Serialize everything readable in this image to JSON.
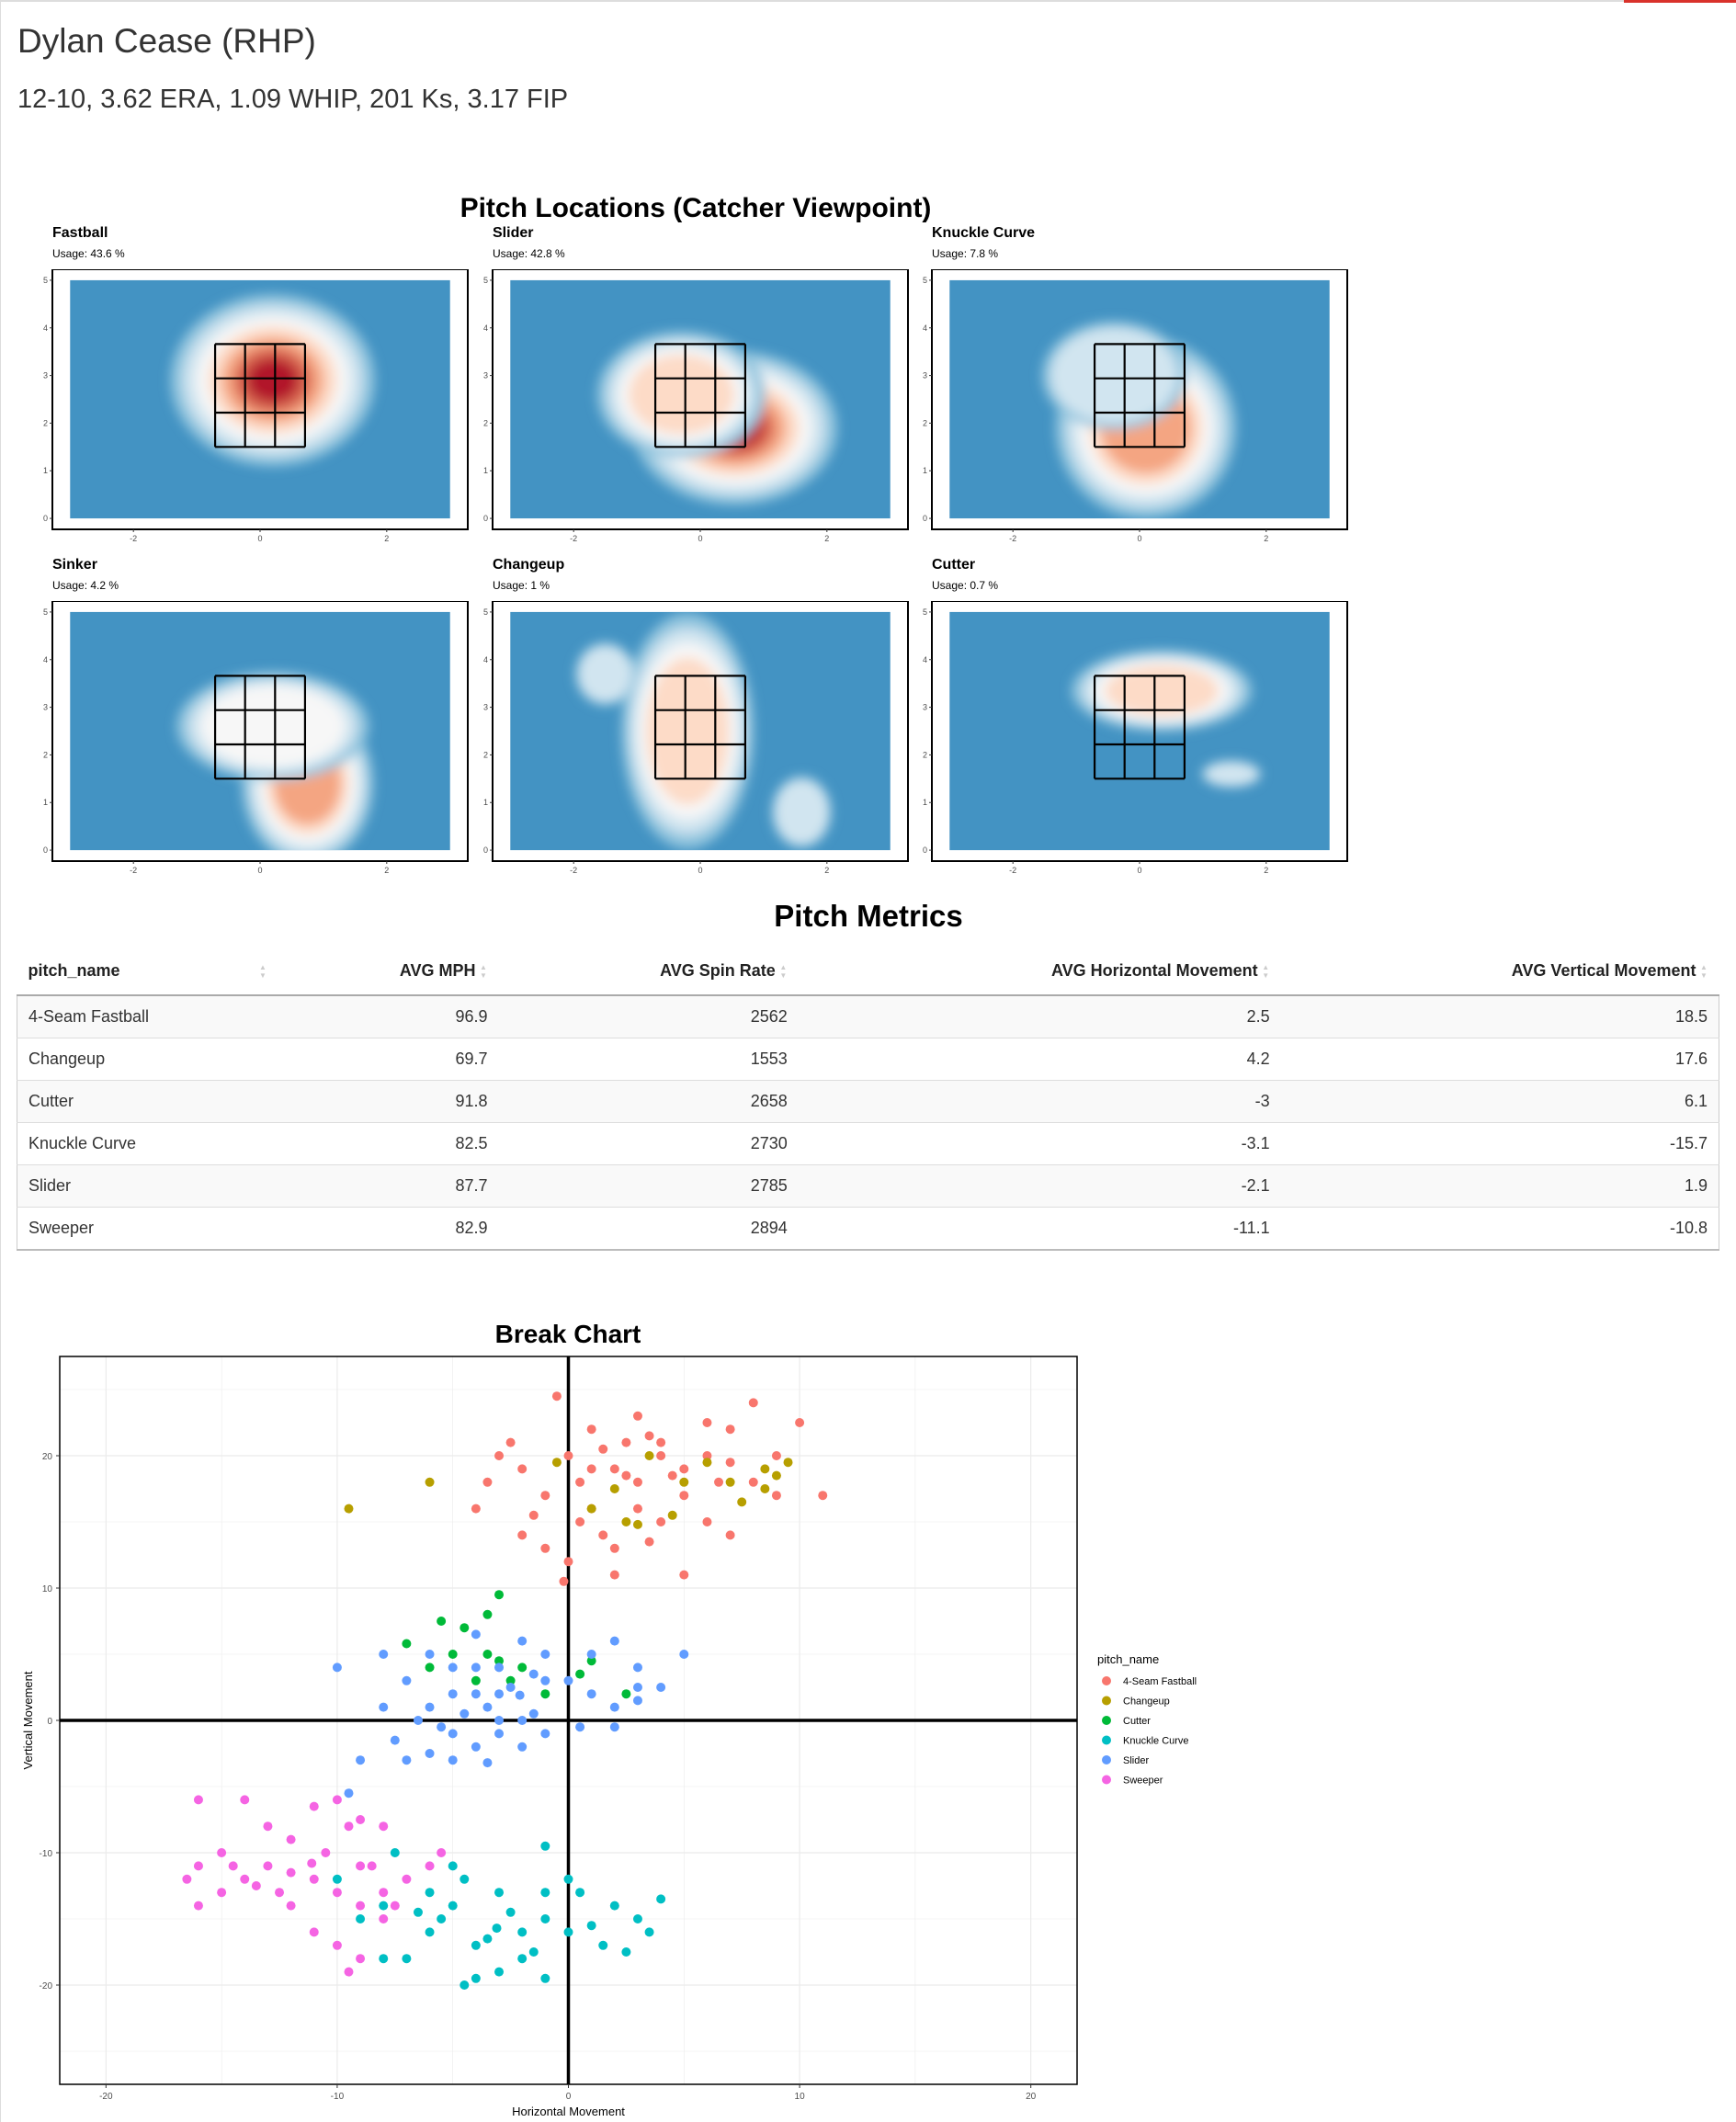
{
  "header": {
    "title": "Dylan Cease (RHP)",
    "stats_line": "12-10, 3.62 ERA, 1.09 WHIP, 201 Ks, 3.17 FIP"
  },
  "colors": {
    "accent_bar": "#d9322b",
    "heat_ramp": [
      "#4393c3",
      "#92c5de",
      "#d1e5f0",
      "#f7f7f7",
      "#fddbc7",
      "#f4a582",
      "#d6604d",
      "#b2182b"
    ]
  },
  "locations": {
    "title": "Pitch Locations (Catcher Viewpoint)",
    "x_ticks": [
      "-2",
      "0",
      "2"
    ],
    "y_ticks": [
      "0",
      "1",
      "2",
      "3",
      "4",
      "5"
    ],
    "panels": [
      {
        "name": "Fastball",
        "usage": "Usage: 43.6 %",
        "peaks": [
          {
            "x": 0.2,
            "y": 2.9,
            "sx": 0.85,
            "sy": 0.95,
            "intensity": 1.0
          }
        ]
      },
      {
        "name": "Slider",
        "usage": "Usage: 42.8 %",
        "peaks": [
          {
            "x": 0.55,
            "y": 1.9,
            "sx": 0.85,
            "sy": 0.85,
            "intensity": 0.95
          },
          {
            "x": -0.3,
            "y": 2.6,
            "sx": 0.7,
            "sy": 0.7,
            "intensity": 0.5
          }
        ]
      },
      {
        "name": "Knuckle Curve",
        "usage": "Usage: 7.8 %",
        "peaks": [
          {
            "x": 0.1,
            "y": 1.9,
            "sx": 0.75,
            "sy": 1.0,
            "intensity": 0.7
          },
          {
            "x": -0.4,
            "y": 3.0,
            "sx": 0.6,
            "sy": 0.6,
            "intensity": 0.35
          }
        ]
      },
      {
        "name": "Sinker",
        "usage": "Usage: 4.2 %",
        "peaks": [
          {
            "x": 0.75,
            "y": 1.4,
            "sx": 0.55,
            "sy": 0.9,
            "intensity": 0.75
          },
          {
            "x": 0.2,
            "y": 2.6,
            "sx": 0.8,
            "sy": 0.6,
            "intensity": 0.4
          }
        ]
      },
      {
        "name": "Changeup",
        "usage": "Usage: 1 %",
        "peaks": [
          {
            "x": -0.2,
            "y": 2.5,
            "sx": 0.55,
            "sy": 1.3,
            "intensity": 0.55
          },
          {
            "x": -1.5,
            "y": 3.7,
            "sx": 0.25,
            "sy": 0.35,
            "intensity": 0.2
          },
          {
            "x": 1.6,
            "y": 0.8,
            "sx": 0.25,
            "sy": 0.4,
            "intensity": 0.2
          }
        ]
      },
      {
        "name": "Cutter",
        "usage": "Usage: 0.7 %",
        "peaks": [
          {
            "x": 0.35,
            "y": 3.35,
            "sx": 0.75,
            "sy": 0.45,
            "intensity": 0.5
          },
          {
            "x": 1.45,
            "y": 1.6,
            "sx": 0.25,
            "sy": 0.15,
            "intensity": 0.25
          }
        ]
      }
    ]
  },
  "metrics": {
    "title": "Pitch Metrics",
    "columns": [
      "pitch_name",
      "AVG MPH",
      "AVG Spin Rate",
      "AVG Horizontal Movement",
      "AVG Vertical Movement"
    ],
    "rows": [
      [
        "4-Seam Fastball",
        "96.9",
        "2562",
        "2.5",
        "18.5"
      ],
      [
        "Changeup",
        "69.7",
        "1553",
        "4.2",
        "17.6"
      ],
      [
        "Cutter",
        "91.8",
        "2658",
        "-3",
        "6.1"
      ],
      [
        "Knuckle Curve",
        "82.5",
        "2730",
        "-3.1",
        "-15.7"
      ],
      [
        "Slider",
        "87.7",
        "2785",
        "-2.1",
        "1.9"
      ],
      [
        "Sweeper",
        "82.9",
        "2894",
        "-11.1",
        "-10.8"
      ]
    ]
  },
  "chart_data": {
    "type": "scatter",
    "title": "Break Chart",
    "xlabel": "Horizontal Movement",
    "ylabel": "Vertical Movement",
    "xlim": [
      -22,
      22
    ],
    "ylim": [
      -27.5,
      27.5
    ],
    "x_ticks": [
      -20,
      -10,
      0,
      10,
      20
    ],
    "y_ticks": [
      -20,
      -10,
      0,
      10,
      20
    ],
    "grid": true,
    "legend": {
      "title": "pitch_name",
      "position": "right"
    },
    "series": [
      {
        "name": "4-Seam Fastball",
        "color": "#F8766D",
        "points": [
          [
            2.5,
            18.5
          ],
          [
            0,
            20
          ],
          [
            1,
            22
          ],
          [
            4,
            21
          ],
          [
            5,
            19
          ],
          [
            -1,
            17
          ],
          [
            -2,
            19
          ],
          [
            -3,
            20
          ],
          [
            3,
            16
          ],
          [
            6,
            20
          ],
          [
            7,
            22
          ],
          [
            8,
            18
          ],
          [
            9,
            17
          ],
          [
            10,
            22.5
          ],
          [
            11,
            17
          ],
          [
            -4,
            16
          ],
          [
            -1,
            13
          ],
          [
            0,
            12
          ],
          [
            2,
            11
          ],
          [
            5,
            11
          ],
          [
            3,
            23
          ],
          [
            1,
            16
          ],
          [
            -2,
            14
          ],
          [
            6,
            15
          ],
          [
            7,
            14
          ],
          [
            4,
            20
          ],
          [
            2,
            19
          ],
          [
            1,
            19
          ],
          [
            3,
            18
          ],
          [
            5,
            17
          ],
          [
            -0.5,
            24.5
          ],
          [
            8,
            24
          ],
          [
            9,
            20
          ],
          [
            0.5,
            15
          ],
          [
            2,
            13
          ],
          [
            4,
            15
          ],
          [
            -3.5,
            18
          ],
          [
            6.5,
            18
          ],
          [
            3.5,
            21.5
          ],
          [
            1.5,
            20.5
          ],
          [
            -2.5,
            21
          ],
          [
            0.5,
            18
          ],
          [
            2.5,
            21
          ],
          [
            4.5,
            18.5
          ],
          [
            6,
            22.5
          ],
          [
            7,
            19.5
          ],
          [
            -1.5,
            15.5
          ],
          [
            1.5,
            14
          ],
          [
            3.5,
            13.5
          ],
          [
            -0.2,
            10.5
          ]
        ]
      },
      {
        "name": "Changeup",
        "color": "#B79F00",
        "points": [
          [
            -9.5,
            16
          ],
          [
            -6,
            18
          ],
          [
            -0.5,
            19.5
          ],
          [
            1,
            16
          ],
          [
            2.5,
            15
          ],
          [
            3,
            14.8
          ],
          [
            4.5,
            15.5
          ],
          [
            6,
            19.5
          ],
          [
            7,
            18
          ],
          [
            8.5,
            19
          ],
          [
            9.5,
            19.5
          ],
          [
            8.5,
            17.5
          ],
          [
            5,
            18
          ],
          [
            2,
            17.5
          ],
          [
            3.5,
            20
          ],
          [
            7.5,
            16.5
          ],
          [
            9,
            18.5
          ]
        ]
      },
      {
        "name": "Cutter",
        "color": "#00BA38",
        "points": [
          [
            -7,
            5.8
          ],
          [
            -5.5,
            7.5
          ],
          [
            -4.5,
            7
          ],
          [
            -3,
            9.5
          ],
          [
            -3.5,
            8
          ],
          [
            -5,
            5
          ],
          [
            -3,
            4.5
          ],
          [
            -2,
            4
          ],
          [
            -4,
            3
          ],
          [
            -6,
            4
          ],
          [
            -2.5,
            3
          ],
          [
            -1,
            2
          ],
          [
            1,
            4.5
          ],
          [
            2.5,
            2
          ],
          [
            -3.5,
            5
          ],
          [
            0.5,
            3.5
          ]
        ]
      },
      {
        "name": "Knuckle Curve",
        "color": "#00BFC4",
        "points": [
          [
            -3.1,
            -15.7
          ],
          [
            -5,
            -14
          ],
          [
            -4,
            -17
          ],
          [
            -2,
            -16
          ],
          [
            -1,
            -15
          ],
          [
            -3,
            -13
          ],
          [
            -6,
            -16
          ],
          [
            -7,
            -18
          ],
          [
            -8,
            -18
          ],
          [
            -9,
            -15
          ],
          [
            -10,
            -12
          ],
          [
            -7.5,
            -10
          ],
          [
            -6,
            -13
          ],
          [
            -5,
            -11
          ],
          [
            -4.5,
            -12
          ],
          [
            -2,
            -18
          ],
          [
            -3,
            -19
          ],
          [
            -4,
            -19.5
          ],
          [
            0,
            -16
          ],
          [
            1,
            -15.5
          ],
          [
            2,
            -14
          ],
          [
            3,
            -15
          ],
          [
            4,
            -13.5
          ],
          [
            3.5,
            -16
          ],
          [
            1.5,
            -17
          ],
          [
            -1,
            -13
          ],
          [
            -1,
            -9.5
          ],
          [
            0,
            -12
          ],
          [
            -4.5,
            -20
          ],
          [
            -1,
            -19.5
          ],
          [
            -8,
            -14
          ],
          [
            -2.5,
            -14.5
          ],
          [
            -3.5,
            -16.5
          ],
          [
            -5.5,
            -15
          ],
          [
            0.5,
            -13
          ],
          [
            2.5,
            -17.5
          ],
          [
            -6.5,
            -14.5
          ],
          [
            -1.5,
            -17.5
          ]
        ]
      },
      {
        "name": "Slider",
        "color": "#619CFF",
        "points": [
          [
            -2.1,
            1.9
          ],
          [
            -3,
            0
          ],
          [
            -4,
            2
          ],
          [
            -5,
            -1
          ],
          [
            -6,
            1
          ],
          [
            -7,
            3
          ],
          [
            -8,
            5
          ],
          [
            -7,
            -3
          ],
          [
            -6,
            -2.5
          ],
          [
            -5,
            -3
          ],
          [
            -3,
            -1
          ],
          [
            -1,
            -1
          ],
          [
            0,
            3
          ],
          [
            1,
            5
          ],
          [
            2,
            6
          ],
          [
            3,
            4
          ],
          [
            4,
            2.5
          ],
          [
            5,
            5
          ],
          [
            -1,
            5
          ],
          [
            -2,
            6
          ],
          [
            -3,
            4
          ],
          [
            -4,
            6.5
          ],
          [
            -5,
            4
          ],
          [
            -6,
            5
          ],
          [
            -10,
            4
          ],
          [
            -9,
            -3
          ],
          [
            -9.5,
            -5.5
          ],
          [
            -3.5,
            -3.2
          ],
          [
            -1.5,
            0.5
          ],
          [
            1,
            2
          ],
          [
            2,
            1
          ],
          [
            3,
            1.5
          ],
          [
            0.5,
            -0.5
          ],
          [
            -2.5,
            2.5
          ],
          [
            -4.5,
            0.5
          ],
          [
            -6.5,
            0
          ],
          [
            -7.5,
            -1.5
          ],
          [
            -4,
            -2
          ],
          [
            -2,
            -2
          ],
          [
            -1,
            3
          ],
          [
            2,
            -0.5
          ],
          [
            3,
            2.5
          ],
          [
            -8,
            1
          ],
          [
            -5.5,
            -0.5
          ],
          [
            -3,
            2
          ],
          [
            -2,
            0
          ],
          [
            -4,
            4
          ],
          [
            -5,
            2
          ],
          [
            -1.5,
            3.5
          ],
          [
            -3.5,
            1
          ]
        ]
      },
      {
        "name": "Sweeper",
        "color": "#F564E3",
        "points": [
          [
            -11.1,
            -10.8
          ],
          [
            -16,
            -6
          ],
          [
            -14,
            -6
          ],
          [
            -11,
            -6.5
          ],
          [
            -10,
            -6
          ],
          [
            -9,
            -7.5
          ],
          [
            -8,
            -8
          ],
          [
            -15,
            -10
          ],
          [
            -16,
            -11
          ],
          [
            -16.5,
            -12
          ],
          [
            -15,
            -13
          ],
          [
            -16,
            -14
          ],
          [
            -14,
            -12
          ],
          [
            -13,
            -11
          ],
          [
            -12,
            -9
          ],
          [
            -11,
            -12
          ],
          [
            -10,
            -13
          ],
          [
            -9,
            -14
          ],
          [
            -8,
            -15
          ],
          [
            -7,
            -12
          ],
          [
            -6,
            -11
          ],
          [
            -5.5,
            -10
          ],
          [
            -12,
            -14
          ],
          [
            -11,
            -16
          ],
          [
            -10,
            -17
          ],
          [
            -9,
            -18
          ],
          [
            -9.5,
            -19
          ],
          [
            -13,
            -8
          ],
          [
            -12.5,
            -13
          ],
          [
            -8.5,
            -11
          ],
          [
            -7.5,
            -14
          ],
          [
            -14.5,
            -11
          ],
          [
            -10.5,
            -10
          ],
          [
            -9,
            -11
          ],
          [
            -12,
            -11.5
          ],
          [
            -13.5,
            -12.5
          ],
          [
            -8,
            -13
          ],
          [
            -9.5,
            -8
          ]
        ]
      }
    ]
  }
}
